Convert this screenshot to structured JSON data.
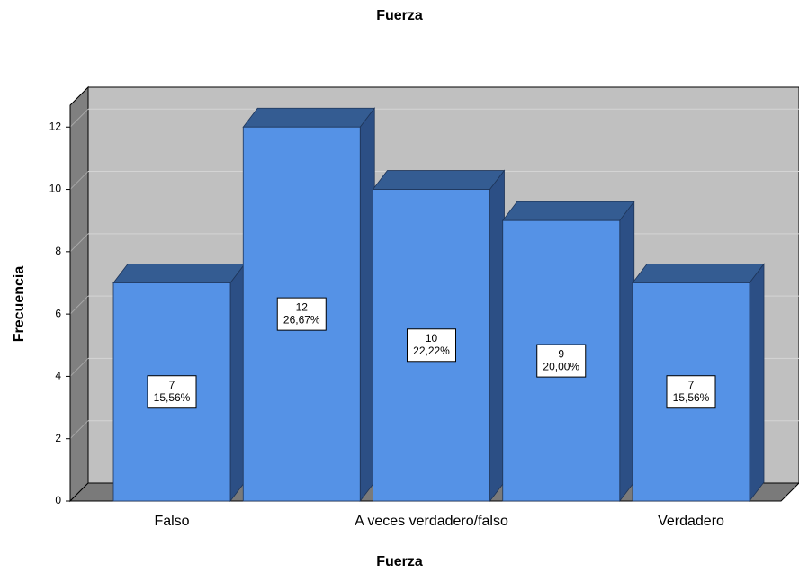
{
  "chart_data": {
    "type": "bar3d",
    "title": "Fuerza",
    "x_label": "Fuerza",
    "y_label": "Frecuencia",
    "categories": [
      "Falso",
      null,
      "A veces verdadero/falso",
      null,
      "Verdadero"
    ],
    "values": [
      7,
      12,
      10,
      9,
      7
    ],
    "percent_labels": [
      "15,56%",
      "26,67%",
      "22,22%",
      "20,00%",
      "15,56%"
    ],
    "color": "#5592e6",
    "top_color": "#345c92",
    "side_color": "#2c4f85",
    "ylim": [
      0,
      12.7
    ],
    "yticks": [
      0,
      2,
      4,
      6,
      8,
      10,
      12
    ],
    "grid": true
  }
}
